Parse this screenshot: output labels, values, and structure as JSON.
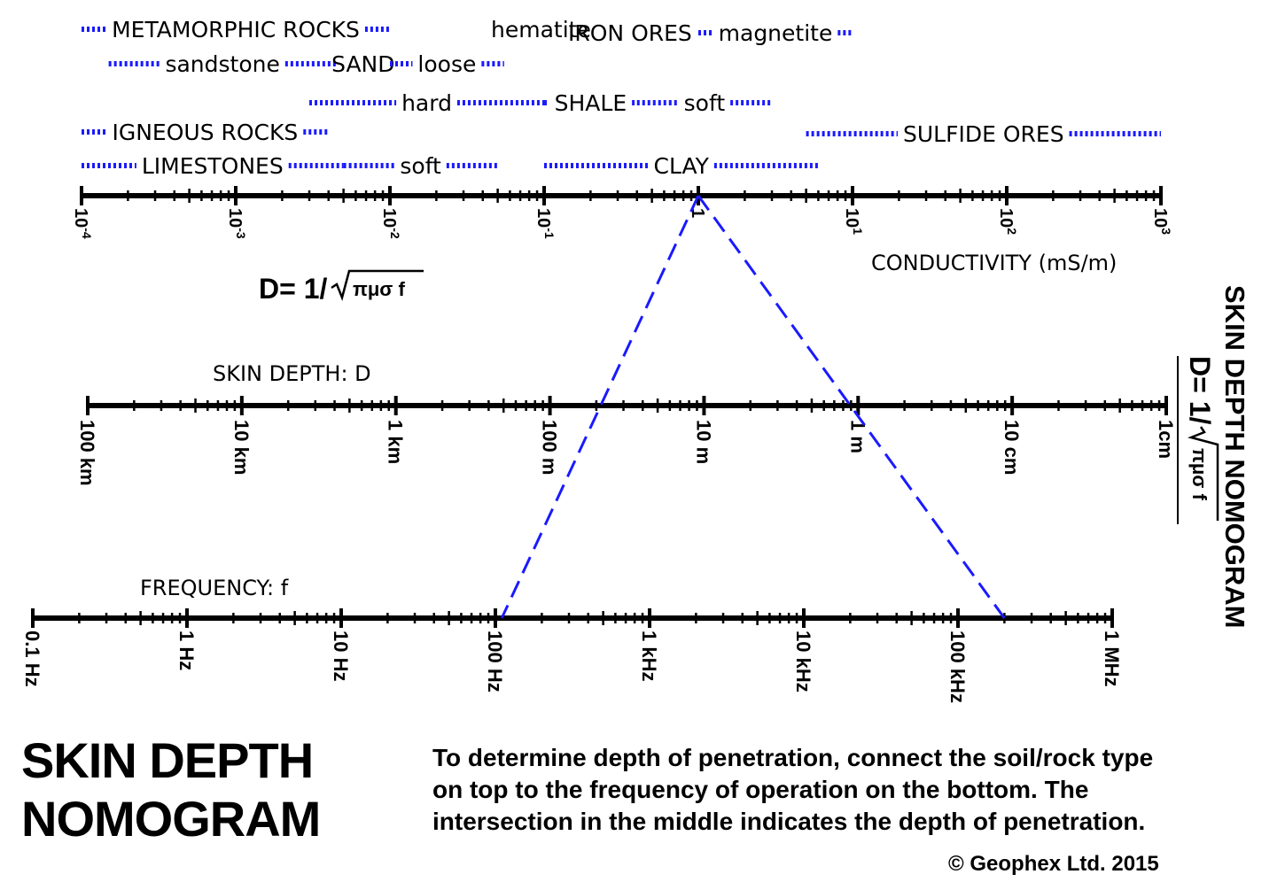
{
  "title_lines": [
    "SKIN DEPTH",
    "NOMOGRAM"
  ],
  "side_title": "SKIN DEPTH NOMOGRAM",
  "formula": {
    "lhs": "D= 1/",
    "radicand": "πμσ f"
  },
  "instructions": [
    "To determine depth of penetration, connect the soil/rock type",
    "on top to the frequency of operation on the bottom. The",
    "intersection in the middle indicates the depth of penetration."
  ],
  "copyright": "© Geophex Ltd. 2015",
  "line_color": "#1a1aff",
  "materials": [
    {
      "label": "METAMORPHIC ROCKS",
      "min": 0.0001,
      "max": 0.01
    },
    {
      "label": "hematite",
      "min": 0.07,
      "max": 0.13
    },
    {
      "label": "IRON ORES",
      "min": 0.13,
      "max": 1
    },
    {
      "label": "magnetite",
      "min": 1,
      "max": 10
    },
    {
      "label": "sandstone",
      "min": 0.00015,
      "max": 0.0045
    },
    {
      "label": "SAND",
      "min": 0.0045,
      "max": 0.01
    },
    {
      "label": "loose",
      "min": 0.01,
      "max": 0.055
    },
    {
      "label": "hard",
      "min": 0.003,
      "max": 0.1
    },
    {
      "label": "SHALE",
      "min": 0.1,
      "max": 0.4
    },
    {
      "label": "soft",
      "min": 0.4,
      "max": 3
    },
    {
      "label": "IGNEOUS ROCKS",
      "min": 0.0001,
      "max": 0.004
    },
    {
      "label": "SULFIDE ORES",
      "min": 5,
      "max": 1000
    },
    {
      "label": "LIMESTONES",
      "min": 0.0001,
      "max": 0.005
    },
    {
      "label": "soft",
      "min": 0.005,
      "max": 0.05
    },
    {
      "label": "CLAY",
      "min": 0.1,
      "max": 6
    }
  ],
  "conductivity_axis": {
    "title": "CONDUCTIVITY (mS/m)",
    "min": 0.0001,
    "max": 1000,
    "labels": [
      {
        "base": "10",
        "exp": "-4"
      },
      {
        "base": "10",
        "exp": "-3"
      },
      {
        "base": "10",
        "exp": "-2"
      },
      {
        "base": "10",
        "exp": "-1"
      },
      {
        "base": "1",
        "exp": ""
      },
      {
        "base": "10",
        "exp": "1"
      },
      {
        "base": "10",
        "exp": "2"
      },
      {
        "base": "10",
        "exp": "3"
      }
    ]
  },
  "depth_axis": {
    "title": "SKIN DEPTH: D",
    "labels": [
      "100 km",
      "10 km",
      "1 km",
      "100 m",
      "10 m",
      "1 m",
      "10 cm",
      "1cm"
    ]
  },
  "frequency_axis": {
    "title": "FREQUENCY: f",
    "labels": [
      "0.1 Hz",
      "1 Hz",
      "10 Hz",
      "100 Hz",
      "1 kHz",
      "10 kHz",
      "100 kHz",
      "1 MHz"
    ]
  },
  "example_lines": [
    {
      "conductivity": 1,
      "frequency": 110,
      "depth": 33
    },
    {
      "conductivity": 1,
      "frequency": 200000,
      "depth": 0.9
    }
  ]
}
